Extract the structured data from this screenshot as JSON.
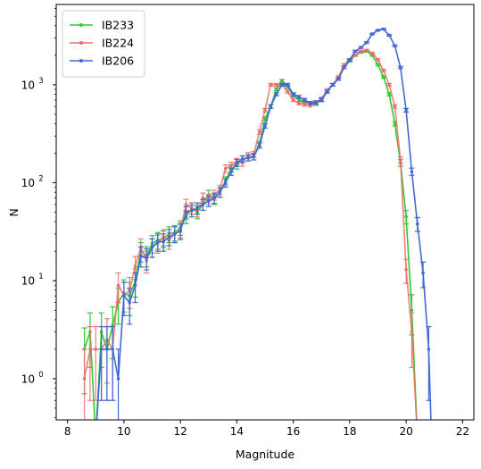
{
  "chart_data": {
    "type": "line",
    "xlabel": "Magnitude",
    "ylabel": "N",
    "xlim": [
      7.6,
      22.4
    ],
    "ylim": [
      0.38,
      6600
    ],
    "yscale": "log",
    "grid": false,
    "legend_position": "top-left",
    "x_ticks": [
      "8",
      "10",
      "12",
      "14",
      "16",
      "18",
      "20",
      "22"
    ],
    "x_tick_values": [
      8,
      10,
      12,
      14,
      16,
      18,
      20,
      22
    ],
    "y_ticks": [
      {
        "base": "10",
        "exp": "0",
        "value": 1
      },
      {
        "base": "10",
        "exp": "1",
        "value": 10
      },
      {
        "base": "10",
        "exp": "2",
        "value": 100
      },
      {
        "base": "10",
        "exp": "3",
        "value": 1000
      }
    ],
    "series": [
      {
        "name": "IB233",
        "color": "#2ecc2e",
        "points": [
          [
            8.6,
            2.0,
            1.3
          ],
          [
            8.8,
            3.0,
            1.7
          ],
          [
            9.0,
            0.0,
            0
          ],
          [
            9.2,
            3.0,
            1.7
          ],
          [
            9.4,
            2.0,
            1.4
          ],
          [
            9.6,
            3.5,
            1.9
          ],
          [
            9.8,
            6.0,
            2.4
          ],
          [
            10.0,
            7.5,
            2.7
          ],
          [
            10.2,
            7.0,
            2.6
          ],
          [
            10.4,
            10.0,
            3.2
          ],
          [
            10.6,
            20.0,
            4.5
          ],
          [
            10.8,
            18.0,
            4.2
          ],
          [
            11.0,
            24.0,
            4.9
          ],
          [
            11.2,
            26.0,
            5.1
          ],
          [
            11.4,
            27.0,
            5.2
          ],
          [
            11.6,
            30.0,
            5.5
          ],
          [
            11.8,
            31.0,
            5.6
          ],
          [
            12.0,
            35.0,
            5.9
          ],
          [
            12.2,
            45.0,
            6.7
          ],
          [
            12.4,
            55.0,
            7.4
          ],
          [
            12.6,
            50.0,
            7.1
          ],
          [
            12.8,
            60.0,
            7.7
          ],
          [
            13.0,
            75.0,
            8.7
          ],
          [
            13.2,
            68.0,
            8.2
          ],
          [
            13.4,
            80.0,
            8.9
          ],
          [
            13.6,
            105.0,
            10
          ],
          [
            13.8,
            140.0,
            12
          ],
          [
            14.0,
            150.0,
            12
          ],
          [
            14.2,
            175.0,
            13
          ],
          [
            14.4,
            180.0,
            13
          ],
          [
            14.6,
            185.0,
            14
          ],
          [
            14.8,
            250.0,
            16
          ],
          [
            15.0,
            450.0,
            21
          ],
          [
            15.2,
            600.0,
            24
          ],
          [
            15.4,
            900.0,
            30
          ],
          [
            15.6,
            1100.0,
            33
          ],
          [
            15.8,
            950.0,
            31
          ],
          [
            16.0,
            780.0,
            28
          ],
          [
            16.2,
            700.0,
            26
          ],
          [
            16.4,
            670.0,
            26
          ],
          [
            16.6,
            650.0,
            25
          ],
          [
            16.8,
            640.0,
            25
          ],
          [
            17.0,
            700.0,
            26
          ],
          [
            17.2,
            850.0,
            29
          ],
          [
            17.4,
            1000.0,
            32
          ],
          [
            17.6,
            1150.0,
            34
          ],
          [
            17.8,
            1500.0,
            39
          ],
          [
            18.0,
            1750.0,
            42
          ],
          [
            18.2,
            2000.0,
            45
          ],
          [
            18.4,
            2150.0,
            46
          ],
          [
            18.6,
            2200.0,
            47
          ],
          [
            18.8,
            2000.0,
            45
          ],
          [
            19.0,
            1600.0,
            40
          ],
          [
            19.2,
            1200.0,
            35
          ],
          [
            19.4,
            800.0,
            28
          ],
          [
            19.6,
            400.0,
            20
          ],
          [
            19.8,
            160.0,
            13
          ],
          [
            20.0,
            45.0,
            7
          ],
          [
            20.2,
            5.0,
            2.2
          ],
          [
            20.4,
            0.0,
            0
          ]
        ]
      },
      {
        "name": "IB224",
        "color": "#f06a6a",
        "points": [
          [
            8.6,
            1.0,
            1.0
          ],
          [
            8.8,
            2.0,
            1.4
          ],
          [
            9.0,
            2.0,
            1.4
          ],
          [
            9.2,
            2.0,
            1.4
          ],
          [
            9.4,
            2.5,
            1.6
          ],
          [
            9.6,
            2.0,
            1.4
          ],
          [
            9.8,
            9.0,
            3.0
          ],
          [
            10.0,
            7.0,
            2.6
          ],
          [
            10.2,
            8.0,
            2.8
          ],
          [
            10.4,
            14.0,
            3.7
          ],
          [
            10.6,
            22.0,
            4.7
          ],
          [
            10.8,
            16.0,
            4.0
          ],
          [
            11.0,
            22.0,
            4.7
          ],
          [
            11.2,
            24.0,
            4.9
          ],
          [
            11.4,
            28.0,
            5.3
          ],
          [
            11.6,
            26.0,
            5.1
          ],
          [
            11.8,
            30.0,
            5.5
          ],
          [
            12.0,
            33.0,
            5.7
          ],
          [
            12.2,
            60.0,
            7.7
          ],
          [
            12.4,
            55.0,
            7.4
          ],
          [
            12.6,
            52.0,
            7.2
          ],
          [
            12.8,
            70.0,
            8.4
          ],
          [
            13.0,
            68.0,
            8.2
          ],
          [
            13.2,
            75.0,
            8.7
          ],
          [
            13.4,
            85.0,
            9.2
          ],
          [
            13.6,
            140.0,
            12
          ],
          [
            13.8,
            150.0,
            12
          ],
          [
            14.0,
            165.0,
            13
          ],
          [
            14.2,
            160.0,
            13
          ],
          [
            14.4,
            190.0,
            14
          ],
          [
            14.6,
            195.0,
            14
          ],
          [
            14.8,
            330.0,
            18
          ],
          [
            15.0,
            550.0,
            23
          ],
          [
            15.2,
            1000.0,
            32
          ],
          [
            15.4,
            1000.0,
            32
          ],
          [
            15.6,
            1000.0,
            32
          ],
          [
            15.8,
            850.0,
            29
          ],
          [
            16.0,
            700.0,
            26
          ],
          [
            16.2,
            650.0,
            25
          ],
          [
            16.4,
            630.0,
            25
          ],
          [
            16.6,
            620.0,
            25
          ],
          [
            16.8,
            650.0,
            25
          ],
          [
            17.0,
            720.0,
            27
          ],
          [
            17.2,
            880.0,
            30
          ],
          [
            17.4,
            1000.0,
            32
          ],
          [
            17.6,
            1200.0,
            35
          ],
          [
            17.8,
            1600.0,
            40
          ],
          [
            18.0,
            1800.0,
            42
          ],
          [
            18.2,
            2000.0,
            45
          ],
          [
            18.4,
            2200.0,
            47
          ],
          [
            18.6,
            2250.0,
            47
          ],
          [
            18.8,
            2100.0,
            46
          ],
          [
            19.0,
            1800.0,
            42
          ],
          [
            19.2,
            1400.0,
            37
          ],
          [
            19.4,
            1000.0,
            32
          ],
          [
            19.6,
            600.0,
            24
          ],
          [
            19.8,
            170.0,
            13
          ],
          [
            20.0,
            13.0,
            3.6
          ],
          [
            20.2,
            3.0,
            1.7
          ],
          [
            20.4,
            0.0,
            0
          ]
        ]
      },
      {
        "name": "IB206",
        "color": "#4169d6",
        "points": [
          [
            9.0,
            0.0,
            0
          ],
          [
            9.2,
            2.0,
            1.4
          ],
          [
            9.4,
            2.0,
            1.4
          ],
          [
            9.6,
            2.0,
            1.4
          ],
          [
            9.8,
            1.0,
            1.0
          ],
          [
            10.0,
            7.0,
            2.6
          ],
          [
            10.2,
            6.0,
            2.4
          ],
          [
            10.4,
            9.0,
            3.0
          ],
          [
            10.6,
            18.0,
            4.2
          ],
          [
            10.8,
            17.0,
            4.1
          ],
          [
            11.0,
            22.0,
            4.7
          ],
          [
            11.2,
            25.0,
            5.0
          ],
          [
            11.4,
            25.0,
            5.0
          ],
          [
            11.6,
            28.0,
            5.3
          ],
          [
            11.8,
            30.0,
            5.5
          ],
          [
            12.0,
            32.0,
            5.7
          ],
          [
            12.2,
            50.0,
            7.1
          ],
          [
            12.4,
            52.0,
            7.2
          ],
          [
            12.6,
            55.0,
            7.4
          ],
          [
            12.8,
            60.0,
            7.7
          ],
          [
            13.0,
            65.0,
            8.1
          ],
          [
            13.2,
            70.0,
            8.4
          ],
          [
            13.4,
            80.0,
            8.9
          ],
          [
            13.6,
            100.0,
            10
          ],
          [
            13.8,
            130.0,
            11
          ],
          [
            14.0,
            160.0,
            13
          ],
          [
            14.2,
            175.0,
            13
          ],
          [
            14.4,
            180.0,
            13
          ],
          [
            14.6,
            185.0,
            14
          ],
          [
            14.8,
            240.0,
            15
          ],
          [
            15.0,
            380.0,
            19
          ],
          [
            15.2,
            600.0,
            24
          ],
          [
            15.4,
            800.0,
            28
          ],
          [
            15.6,
            1000.0,
            32
          ],
          [
            15.8,
            1000.0,
            32
          ],
          [
            16.0,
            800.0,
            28
          ],
          [
            16.2,
            750.0,
            27
          ],
          [
            16.4,
            700.0,
            26
          ],
          [
            16.6,
            650.0,
            25
          ],
          [
            16.8,
            660.0,
            26
          ],
          [
            17.0,
            700.0,
            26
          ],
          [
            17.2,
            850.0,
            29
          ],
          [
            17.4,
            1000.0,
            32
          ],
          [
            17.6,
            1150.0,
            34
          ],
          [
            17.8,
            1500.0,
            39
          ],
          [
            18.0,
            1800.0,
            42
          ],
          [
            18.2,
            2200.0,
            47
          ],
          [
            18.4,
            2400.0,
            49
          ],
          [
            18.6,
            2700.0,
            52
          ],
          [
            18.8,
            3300.0,
            57
          ],
          [
            19.0,
            3600.0,
            60
          ],
          [
            19.2,
            3700.0,
            61
          ],
          [
            19.4,
            3200.0,
            57
          ],
          [
            19.6,
            2500.0,
            50
          ],
          [
            19.8,
            1500.0,
            39
          ],
          [
            20.0,
            550.0,
            23
          ],
          [
            20.2,
            130.0,
            11
          ],
          [
            20.4,
            38.0,
            6.2
          ],
          [
            20.6,
            12.0,
            3.5
          ],
          [
            20.8,
            2.0,
            1.4
          ],
          [
            20.9,
            0.0,
            0
          ]
        ]
      }
    ]
  }
}
